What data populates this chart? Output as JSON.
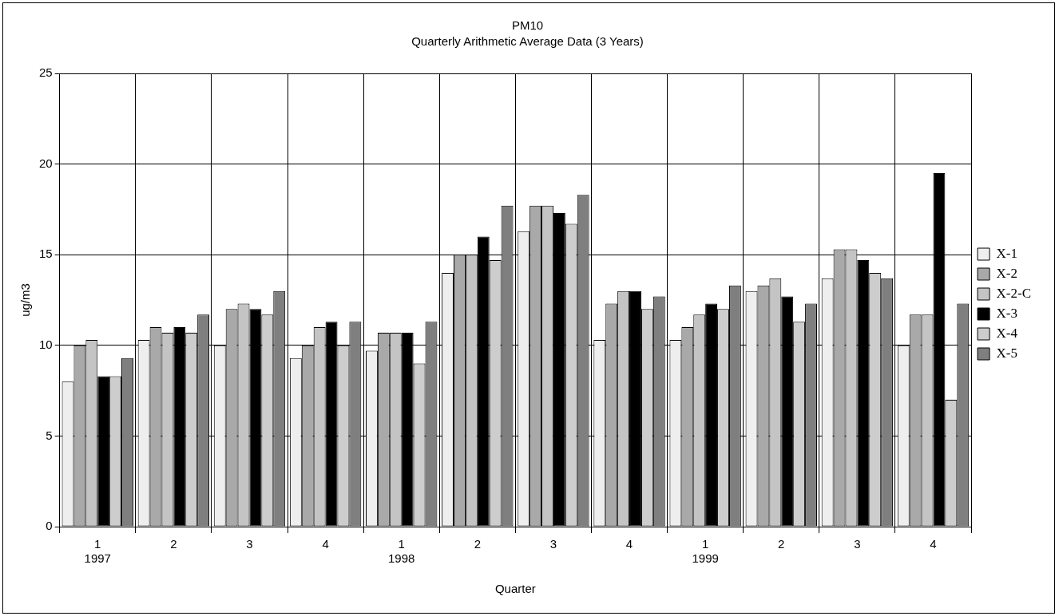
{
  "chart_data": {
    "type": "bar",
    "title": "PM10",
    "subtitle": "Quarterly Arithmetic Average Data (3 Years)",
    "xlabel": "Quarter",
    "ylabel": "ug/m3",
    "categories": [
      "1\n1997",
      "2",
      "3",
      "4",
      "1\n1998",
      "2",
      "3",
      "4",
      "1\n1999",
      "2",
      "3",
      "4"
    ],
    "series": [
      {
        "name": "X-1",
        "color": "#eeeeee",
        "values": [
          8,
          10.3,
          10,
          9.3,
          9.7,
          14,
          16.3,
          10.3,
          10.3,
          13,
          13.7,
          10
        ]
      },
      {
        "name": "X-2",
        "color": "#a9a9a9",
        "values": [
          10,
          11,
          12,
          10,
          10.7,
          15,
          17.7,
          12.3,
          11,
          13.3,
          15.3,
          11.7
        ]
      },
      {
        "name": "X-2-C",
        "color": "#c4c4c4",
        "values": [
          10.3,
          10.7,
          12.3,
          11,
          10.7,
          15,
          17.7,
          13,
          11.7,
          13.7,
          15.3,
          11.7
        ]
      },
      {
        "name": "X-3",
        "color": "#000000",
        "values": [
          8.3,
          11,
          12,
          11.3,
          10.7,
          16,
          17.3,
          13,
          12.3,
          12.7,
          14.7,
          19.5
        ]
      },
      {
        "name": "X-4",
        "color": "#cdcdcd",
        "values": [
          8.3,
          10.7,
          11.7,
          10,
          9,
          14.7,
          16.7,
          12,
          12,
          11.3,
          14,
          7
        ]
      },
      {
        "name": "X-5",
        "color": "#7f7f7f",
        "values": [
          9.3,
          11.7,
          13,
          11.3,
          11.3,
          17.7,
          18.3,
          12.7,
          13.3,
          12.3,
          13.7,
          12.3
        ]
      }
    ],
    "ylim": [
      0,
      25
    ],
    "yticks": [
      0,
      5,
      10,
      15,
      20,
      25
    ],
    "grid": true,
    "legend": "right"
  }
}
